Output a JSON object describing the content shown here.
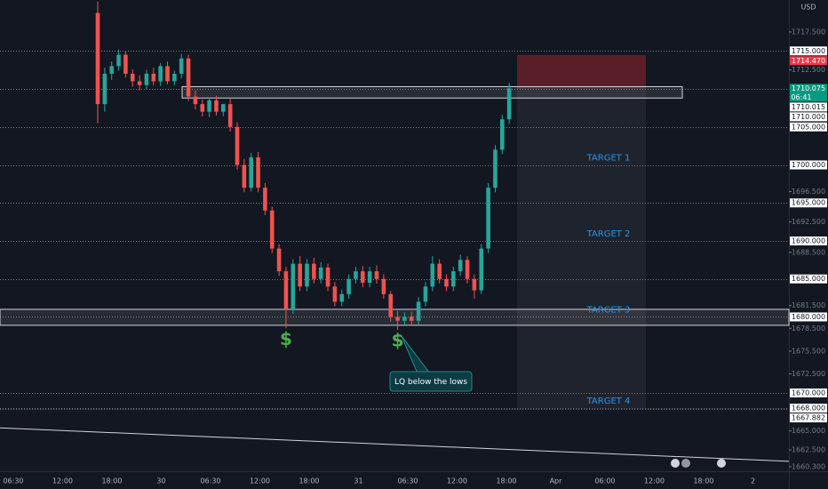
{
  "header": {
    "currency": "USD"
  },
  "chart_data": {
    "type": "candlestick",
    "up_color": "#26a69a",
    "down_color": "#ef5350",
    "open": [
      1720,
      1708,
      1712,
      1713,
      1714.5,
      1712,
      1711,
      1710.5,
      1712,
      1711,
      1713,
      1711,
      1712,
      1714,
      1709,
      1708,
      1707,
      1708.5,
      1707,
      1708,
      1705,
      1700,
      1697,
      1701,
      1697,
      1694,
      1689,
      1686,
      1681,
      1687,
      1684,
      1687,
      1685,
      1686.5,
      1684,
      1682,
      1683,
      1685,
      1686,
      1684.5,
      1686,
      1685,
      1683,
      1680,
      1679.5,
      1680,
      1679.5,
      1682,
      1684,
      1687,
      1685,
      1684,
      1686,
      1687.5,
      1685,
      1683.5,
      1689,
      1697,
      1702,
      1706
    ],
    "high": [
      1721.5,
      1712.8,
      1713.6,
      1715.2,
      1715,
      1712.6,
      1711.8,
      1712.5,
      1712.8,
      1713.4,
      1713.6,
      1712.4,
      1714.6,
      1714.5,
      1709.8,
      1708.6,
      1708.9,
      1709.1,
      1708,
      1708.8,
      1705.6,
      1700.8,
      1701.6,
      1701.7,
      1697.6,
      1694.5,
      1689.6,
      1686.6,
      1687.6,
      1688,
      1687.6,
      1687.8,
      1687.2,
      1687,
      1684.6,
      1683.6,
      1685.6,
      1686.6,
      1686.7,
      1686.6,
      1686.8,
      1685.6,
      1683.4,
      1680.8,
      1680.6,
      1680.7,
      1682.6,
      1684.6,
      1688,
      1687.6,
      1685.6,
      1686.6,
      1688.2,
      1688,
      1685.6,
      1689.6,
      1697.6,
      1702.6,
      1706.6,
      1710.8
    ],
    "low": [
      1705.5,
      1707,
      1711.2,
      1712.4,
      1711.5,
      1710.3,
      1709.8,
      1710,
      1710.5,
      1710.4,
      1710.6,
      1710.5,
      1711.4,
      1708.4,
      1707.3,
      1706.4,
      1706.3,
      1706.5,
      1706.4,
      1704.4,
      1699.4,
      1696.4,
      1696.5,
      1696.4,
      1693.4,
      1688.4,
      1685.4,
      1678.5,
      1680.4,
      1683.4,
      1683.4,
      1684.4,
      1684.4,
      1683.4,
      1681.4,
      1681.4,
      1682.4,
      1684.4,
      1683.9,
      1683.9,
      1684.4,
      1682.4,
      1679.4,
      1678.3,
      1678.9,
      1678.9,
      1679,
      1681.4,
      1683.4,
      1684.4,
      1683.4,
      1683.4,
      1685.4,
      1684.4,
      1682.4,
      1683,
      1688.4,
      1696.4,
      1701.4,
      1705.4
    ],
    "close": [
      1708,
      1712,
      1713,
      1714.5,
      1712,
      1711,
      1710.5,
      1712,
      1711,
      1713,
      1711,
      1712,
      1714,
      1709,
      1708,
      1707,
      1708.5,
      1707,
      1708,
      1705,
      1700,
      1697,
      1701,
      1697,
      1694,
      1689,
      1686,
      1681,
      1687,
      1684,
      1687,
      1685,
      1686.5,
      1684,
      1682,
      1683,
      1685,
      1686,
      1684.5,
      1686,
      1685,
      1683,
      1680,
      1679.5,
      1680,
      1679.5,
      1682,
      1684,
      1687,
      1685,
      1684,
      1686,
      1687.5,
      1685,
      1683.5,
      1689,
      1697,
      1702,
      1706,
      1710.075
    ],
    "ylim": [
      1659.7,
      1721.7
    ],
    "yticks": [
      {
        "value": 1717.5,
        "label": "1717.500"
      },
      {
        "value": 1712.5,
        "label": "1712.500"
      },
      {
        "value": 1696.5,
        "label": "1696.500"
      },
      {
        "value": 1692.5,
        "label": "1692.500"
      },
      {
        "value": 1688.5,
        "label": "1688.500"
      },
      {
        "value": 1681.5,
        "label": "1681.500"
      },
      {
        "value": 1678.5,
        "label": "1678.500"
      },
      {
        "value": 1675.5,
        "label": "1675.500"
      },
      {
        "value": 1672.5,
        "label": "1672.500"
      },
      {
        "value": 1665,
        "label": "1665.000"
      },
      {
        "value": 1662.5,
        "label": "1662.500"
      },
      {
        "value": 1660.3,
        "label": "1660.300"
      }
    ],
    "levels": [
      {
        "value": 1715,
        "label": "1715.000"
      },
      {
        "value": 1710,
        "label": "1710.000"
      },
      {
        "value": 1705,
        "label": "1705.000"
      },
      {
        "value": 1700,
        "label": "1700.000"
      },
      {
        "value": 1695,
        "label": "1695.000"
      },
      {
        "value": 1690,
        "label": "1690.000"
      },
      {
        "value": 1685,
        "label": "1685.000"
      },
      {
        "value": 1680,
        "label": "1680.000"
      },
      {
        "value": 1670,
        "label": "1670.000"
      },
      {
        "value": 1668,
        "label": "1668.000"
      },
      {
        "value": 1667.882,
        "label": "1667.882"
      }
    ],
    "zones": [
      {
        "low": 1708.8,
        "high": 1710.3
      },
      {
        "low": 1678.9,
        "high": 1681
      }
    ],
    "zone_label": {
      "value": 1710.015,
      "label": "1710.015"
    },
    "position": {
      "entry": {
        "value": 1710.075,
        "label": "1710.075"
      },
      "countdown": "06:41",
      "stop": {
        "value": 1714.47,
        "label": "1714.470"
      },
      "target": 1668
    },
    "targets": [
      {
        "value": 1700.6,
        "label": "TARGET 1"
      },
      {
        "value": 1690.6,
        "label": "TARGET 2"
      },
      {
        "value": 1680.6,
        "label": "TARGET 3"
      },
      {
        "value": 1668.6,
        "label": "TARGET 4"
      }
    ],
    "markers": [
      "$",
      "$"
    ],
    "note": "LQ below the lows",
    "trendline": {
      "start": 1665.4,
      "end": 1661.0
    },
    "xticks": [
      "06:30",
      "12:00",
      "18:00",
      "30",
      "06:30",
      "12:00",
      "18:00",
      "31",
      "06:30",
      "12:00",
      "18:00",
      "Apr",
      "06:00",
      "12:00",
      "18:00",
      "2"
    ]
  }
}
